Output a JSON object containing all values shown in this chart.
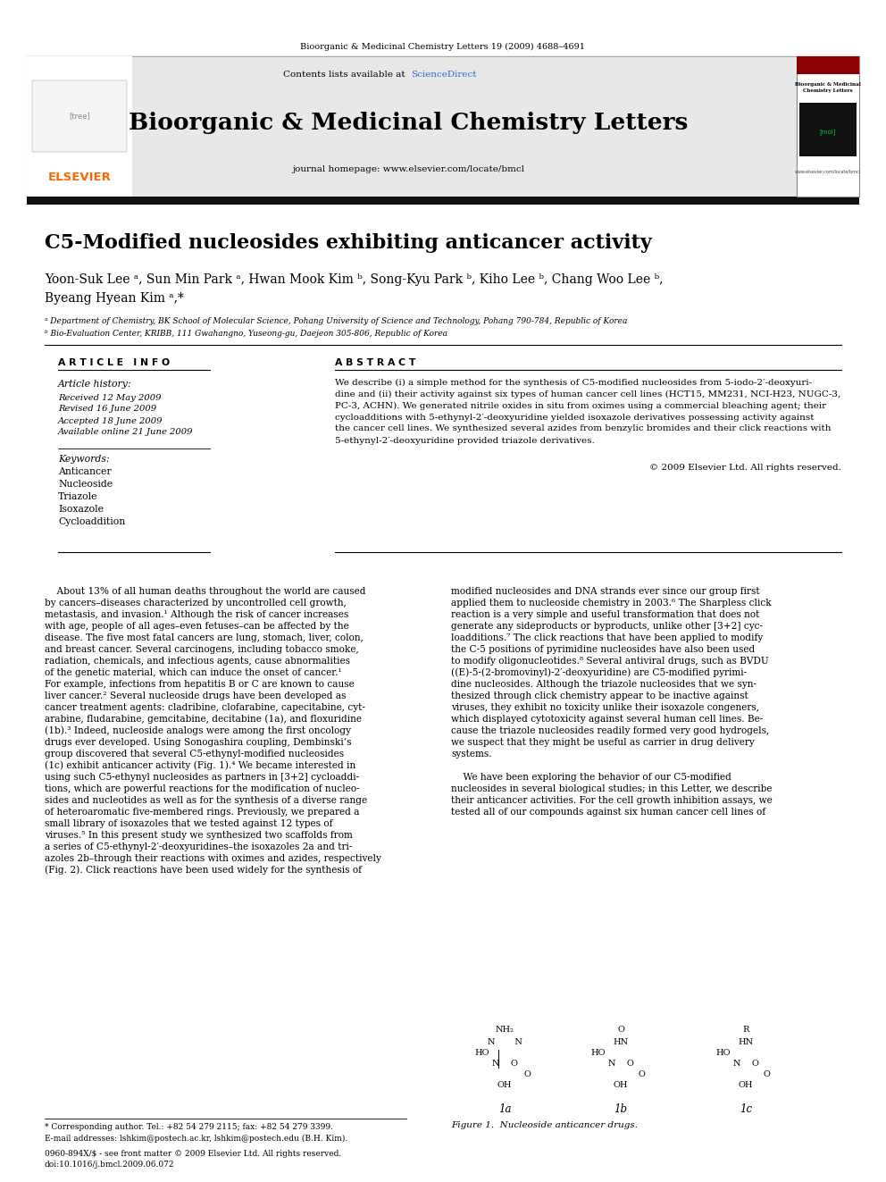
{
  "background_color": "#ffffff",
  "top_journal_ref": "Bioorganic & Medicinal Chemistry Letters 19 (2009) 4688–4691",
  "journal_name": "Bioorganic & Medicinal Chemistry Letters",
  "journal_homepage": "journal homepage: www.elsevier.com/locate/bmcl",
  "contents_text_plain": "Contents lists available at ",
  "contents_text_link": "ScienceDirect",
  "article_title": "C5-Modified nucleosides exhibiting anticancer activity",
  "authors_line1": "Yoon-Suk Lee ᵃ, Sun Min Park ᵃ, Hwan Mook Kim ᵇ, Song-Kyu Park ᵇ, Kiho Lee ᵇ, Chang Woo Lee ᵇ,",
  "authors_line2": "Byeang Hyean Kim ᵃ,*",
  "affil_a": "ᵃ Department of Chemistry, BK School of Molecular Science, Pohang University of Science and Technology, Pohang 790-784, Republic of Korea",
  "affil_b": "ᵇ Bio-Evaluation Center, KRIBB, 111 Gwahangno, Yuseong-gu, Daejeon 305-806, Republic of Korea",
  "article_info_header": "A R T I C L E   I N F O",
  "abstract_header": "A B S T R A C T",
  "article_history_label": "Article history:",
  "received": "Received 12 May 2009",
  "revised": "Revised 16 June 2009",
  "accepted": "Accepted 18 June 2009",
  "available": "Available online 21 June 2009",
  "keywords_label": "Keywords:",
  "keywords": [
    "Anticancer",
    "Nucleoside",
    "Triazole",
    "Isoxazole",
    "Cycloaddition"
  ],
  "abstract_lines": [
    "We describe (i) a simple method for the synthesis of C5-modified nucleosides from 5-iodo-2′-deoxyuri-",
    "dine and (ii) their activity against six types of human cancer cell lines (HCT15, MM231, NCI-H23, NUGC-3,",
    "PC-3, ACHN). We generated nitrile oxides in situ from oximes using a commercial bleaching agent; their",
    "cycloadditions with 5-ethynyl-2′-deoxyuridine yielded isoxazole derivatives possessing activity against",
    "the cancer cell lines. We synthesized several azides from benzylic bromides and their click reactions with",
    "5-ethynyl-2′-deoxyuridine provided triazole derivatives."
  ],
  "copyright": "© 2009 Elsevier Ltd. All rights reserved.",
  "body_col1_lines": [
    "    About 13% of all human deaths throughout the world are caused",
    "by cancers–diseases characterized by uncontrolled cell growth,",
    "metastasis, and invasion.¹ Although the risk of cancer increases",
    "with age, people of all ages–even fetuses–can be affected by the",
    "disease. The five most fatal cancers are lung, stomach, liver, colon,",
    "and breast cancer. Several carcinogens, including tobacco smoke,",
    "radiation, chemicals, and infectious agents, cause abnormalities",
    "of the genetic material, which can induce the onset of cancer.¹",
    "For example, infections from hepatitis B or C are known to cause",
    "liver cancer.² Several nucleoside drugs have been developed as",
    "cancer treatment agents: cladribine, clofarabine, capecitabine, cyt-",
    "arabine, fludarabine, gemcitabine, decitabine (1a), and floxuridine",
    "(1b).³ Indeed, nucleoside analogs were among the first oncology",
    "drugs ever developed. Using Sonogashira coupling, Dembinski’s",
    "group discovered that several C5-ethynyl-modified nucleosides",
    "(1c) exhibit anticancer activity (Fig. 1).⁴ We became interested in",
    "using such C5-ethynyl nucleosides as partners in [3+2] cycloaddi-",
    "tions, which are powerful reactions for the modification of nucleo-",
    "sides and nucleotides as well as for the synthesis of a diverse range",
    "of heteroaromatic five-membered rings. Previously, we prepared a",
    "small library of isoxazoles that we tested against 12 types of",
    "viruses.⁵ In this present study we synthesized two scaffolds from",
    "a series of C5-ethynyl-2′-deoxyuridines–the isoxazoles 2a and tri-",
    "azoles 2b–through their reactions with oximes and azides, respectively",
    "(Fig. 2). Click reactions have been used widely for the synthesis of"
  ],
  "body_col2_lines": [
    "modified nucleosides and DNA strands ever since our group first",
    "applied them to nucleoside chemistry in 2003.⁶ The Sharpless click",
    "reaction is a very simple and useful transformation that does not",
    "generate any sideproducts or byproducts, unlike other [3+2] cyc-",
    "loadditions.⁷ The click reactions that have been applied to modify",
    "the C-5 positions of pyrimidine nucleosides have also been used",
    "to modify oligonucleotides.⁸ Several antiviral drugs, such as BVDU",
    "((E)-5-(2-bromovinyl)-2′-deoxyuridine) are C5-modified pyrimi-",
    "dine nucleosides. Although the triazole nucleosides that we syn-",
    "thesized through click chemistry appear to be inactive against",
    "viruses, they exhibit no toxicity unlike their isoxazole congeners,",
    "which displayed cytotoxicity against several human cell lines. Be-",
    "cause the triazole nucleosides readily formed very good hydrogels,",
    "we suspect that they might be useful as carrier in drug delivery",
    "systems.",
    "",
    "    We have been exploring the behavior of our C5-modified",
    "nucleosides in several biological studies; in this Letter, we describe",
    "their anticancer activities. For the cell growth inhibition assays, we",
    "tested all of our compounds against six human cancer cell lines of"
  ],
  "figure_caption": "Figure 1.  Nucleoside anticancer drugs.",
  "footer_note": "* Corresponding author. Tel.: +82 54 279 2115; fax: +82 54 279 3399.",
  "footer_email": "E-mail addresses: lshkim@postech.ac.kr, lshkim@postech.edu (B.H. Kim).",
  "footer_issn": "0960-894X/$ - see front matter © 2009 Elsevier Ltd. All rights reserved.",
  "footer_doi": "doi:10.1016/j.bmcl.2009.06.072",
  "header_bg": "#e8e8e8",
  "sciencedirect_color": "#3366cc",
  "elsevier_color": "#ff6600",
  "black_bar_color": "#111111"
}
